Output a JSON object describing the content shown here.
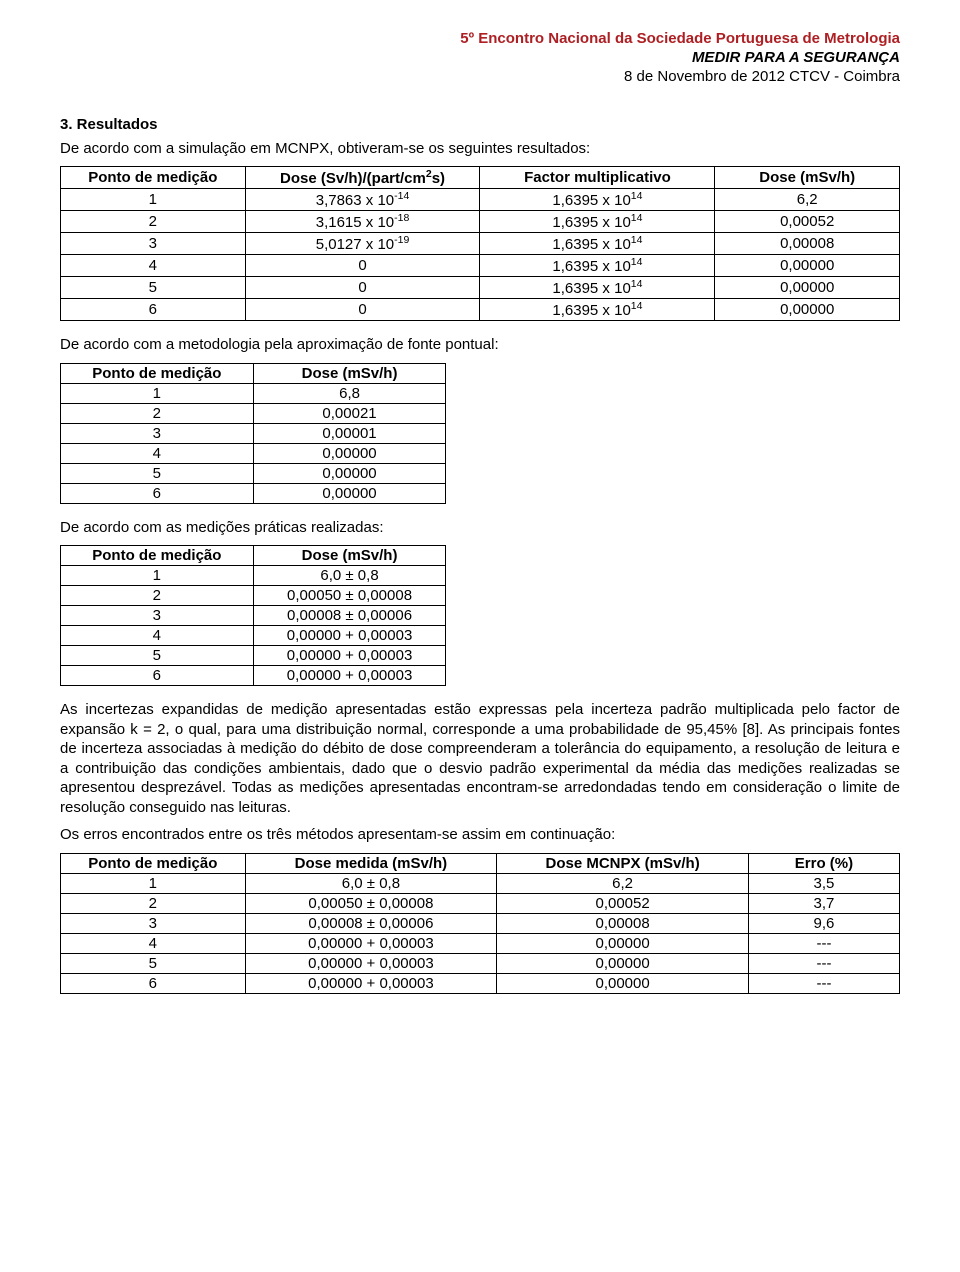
{
  "header": {
    "line1": "5º Encontro Nacional da Sociedade Portuguesa de Metrologia",
    "line2": "MEDIR PARA A SEGURANÇA",
    "line3": "8 de Novembro de 2012 CTCV - Coimbra"
  },
  "section_title": "3. Resultados",
  "intro": "De acordo com a simulação em MCNPX, obtiveram-se os seguintes resultados:",
  "table1": {
    "headers": [
      "Ponto de medição",
      "Dose (Sv/h)/(part/cm²s)",
      "Factor multiplicativo",
      "Dose (mSv/h)"
    ],
    "rows": [
      [
        "1",
        "3,7863 x 10⁻¹⁴",
        "1,6395 x 10¹⁴",
        "6,2"
      ],
      [
        "2",
        "3,1615 x 10⁻¹⁸",
        "1,6395 x 10¹⁴",
        "0,00052"
      ],
      [
        "3",
        "5,0127 x 10⁻¹⁹",
        "1,6395 x 10¹⁴",
        "0,00008"
      ],
      [
        "4",
        "0",
        "1,6395 x 10¹⁴",
        "0,00000"
      ],
      [
        "5",
        "0",
        "1,6395 x 10¹⁴",
        "0,00000"
      ],
      [
        "6",
        "0",
        "1,6395 x 10¹⁴",
        "0,00000"
      ]
    ]
  },
  "para2": "De acordo com a metodologia pela aproximação de fonte pontual:",
  "table2": {
    "headers": [
      "Ponto de medição",
      "Dose (mSv/h)"
    ],
    "rows": [
      [
        "1",
        "6,8"
      ],
      [
        "2",
        "0,00021"
      ],
      [
        "3",
        "0,00001"
      ],
      [
        "4",
        "0,00000"
      ],
      [
        "5",
        "0,00000"
      ],
      [
        "6",
        "0,00000"
      ]
    ]
  },
  "para3": "De acordo com as medições práticas realizadas:",
  "table3": {
    "headers": [
      "Ponto de medição",
      "Dose (mSv/h)"
    ],
    "rows": [
      [
        "1",
        "6,0 ± 0,8"
      ],
      [
        "2",
        "0,00050 ± 0,00008"
      ],
      [
        "3",
        "0,00008 ± 0,00006"
      ],
      [
        "4",
        "0,00000 + 0,00003"
      ],
      [
        "5",
        "0,00000 + 0,00003"
      ],
      [
        "6",
        "0,00000 + 0,00003"
      ]
    ]
  },
  "para4": "As incertezas expandidas de medição apresentadas estão expressas pela incerteza padrão multiplicada pelo factor de expansão k = 2, o qual, para uma distribuição normal, corresponde a uma probabilidade de 95,45% [8]. As principais fontes de incerteza associadas à medição do débito de dose compreenderam a tolerância do equipamento, a resolução de leitura e a contribuição das condições ambientais, dado que o desvio padrão experimental da média das medições realizadas se apresentou desprezável. Todas as medições apresentadas encontram-se arredondadas tendo em consideração o limite de resolução conseguido nas leituras.",
  "para5": "Os erros encontrados entre os três métodos apresentam-se assim em continuação:",
  "table4": {
    "headers": [
      "Ponto de medição",
      "Dose medida (mSv/h)",
      "Dose MCNPX (mSv/h)",
      "Erro (%)"
    ],
    "rows": [
      [
        "1",
        "6,0 ± 0,8",
        "6,2",
        "3,5"
      ],
      [
        "2",
        "0,00050 ± 0,00008",
        "0,00052",
        "3,7"
      ],
      [
        "3",
        "0,00008 ± 0,00006",
        "0,00008",
        "9,6"
      ],
      [
        "4",
        "0,00000 + 0,00003",
        "0,00000",
        "---"
      ],
      [
        "5",
        "0,00000 + 0,00003",
        "0,00000",
        "---"
      ],
      [
        "6",
        "0,00000 + 0,00003",
        "0,00000",
        "---"
      ]
    ]
  }
}
